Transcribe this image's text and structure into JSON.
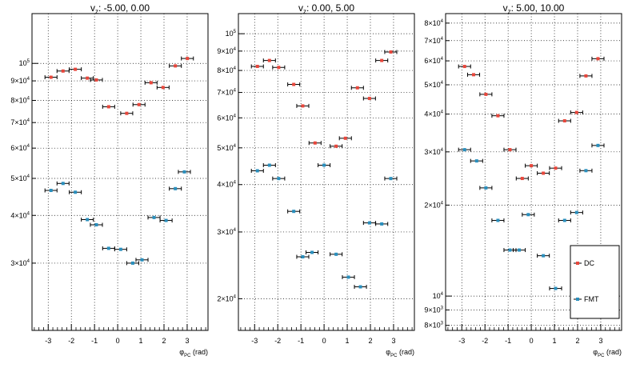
{
  "colors": {
    "DC": "#e8473c",
    "FMT": "#2a8fbd",
    "grid": "#000000",
    "frame": "#000000"
  },
  "chart_data": [
    {
      "type": "scatter",
      "title": "v_z: -5.00, 0.00",
      "title_main": "v",
      "title_sub": "z",
      "title_rest": ": -5.00, 0.00",
      "xlabel": "φ_PC (rad)",
      "xlabel_main": "φ",
      "xlabel_sub": "PC",
      "xlabel_rest": "(rad)",
      "xlim": [
        -3.7,
        3.9
      ],
      "ylim": [
        20000,
        135000
      ],
      "yscale": "log",
      "xticks": [
        -3,
        -2,
        -1,
        0,
        1,
        2,
        3
      ],
      "ytick_labels": [
        {
          "value": 30000,
          "mant": "3×10",
          "exp": "4"
        },
        {
          "value": 40000,
          "mant": "4×10",
          "exp": "4"
        },
        {
          "value": 50000,
          "mant": "5×10",
          "exp": "4"
        },
        {
          "value": 60000,
          "mant": "6×10",
          "exp": "4"
        },
        {
          "value": 70000,
          "mant": "7×10",
          "exp": "4"
        },
        {
          "value": 80000,
          "mant": "8×10",
          "exp": "4"
        },
        {
          "value": 90000,
          "mant": "9×10",
          "exp": "4"
        },
        {
          "value": 100000,
          "mant": "10",
          "exp": "5"
        }
      ],
      "grid": true,
      "bin_halfwidth": 0.26,
      "series": [
        {
          "name": "DC",
          "x": [
            -2.88,
            -2.36,
            -1.83,
            -1.31,
            -0.92,
            -0.39,
            0.39,
            0.92,
            1.44,
            1.96,
            2.49,
            3.01
          ],
          "y": [
            92000,
            95500,
            96500,
            91500,
            90500,
            77000,
            74000,
            78000,
            89000,
            86500,
            98500,
            103000
          ]
        },
        {
          "name": "FMT",
          "x": [
            -2.88,
            -2.36,
            -1.83,
            -1.31,
            -0.92,
            -0.39,
            0.13,
            0.65,
            1.05,
            1.57,
            2.09,
            2.49,
            2.88
          ],
          "y": [
            46500,
            48500,
            46000,
            39000,
            37800,
            32800,
            32600,
            30000,
            30600,
            39500,
            38800,
            47000,
            52000
          ]
        }
      ]
    },
    {
      "type": "scatter",
      "title": "v_z: 0.00, 5.00",
      "title_main": "v",
      "title_sub": "z",
      "title_rest": ": 0.00, 5.00",
      "xlabel": "φ_PC (rad)",
      "xlabel_main": "φ",
      "xlabel_sub": "PC",
      "xlabel_rest": "(rad)",
      "xlim": [
        -3.7,
        3.9
      ],
      "ylim": [
        16500,
        113000
      ],
      "yscale": "log",
      "xticks": [
        -3,
        -2,
        -1,
        0,
        1,
        2,
        3
      ],
      "ytick_labels": [
        {
          "value": 20000,
          "mant": "2×10",
          "exp": "4"
        },
        {
          "value": 30000,
          "mant": "3×10",
          "exp": "4"
        },
        {
          "value": 40000,
          "mant": "4×10",
          "exp": "4"
        },
        {
          "value": 50000,
          "mant": "5×10",
          "exp": "4"
        },
        {
          "value": 60000,
          "mant": "6×10",
          "exp": "4"
        },
        {
          "value": 70000,
          "mant": "7×10",
          "exp": "4"
        },
        {
          "value": 80000,
          "mant": "8×10",
          "exp": "4"
        },
        {
          "value": 90000,
          "mant": "9×10",
          "exp": "4"
        },
        {
          "value": 100000,
          "mant": "10",
          "exp": "5"
        }
      ],
      "grid": true,
      "bin_halfwidth": 0.26,
      "series": [
        {
          "name": "DC",
          "x": [
            -2.88,
            -2.36,
            -1.96,
            -1.31,
            -0.92,
            -0.39,
            0.52,
            0.92,
            1.44,
            1.96,
            2.49,
            2.88
          ],
          "y": [
            82000,
            85000,
            81500,
            73500,
            64500,
            51500,
            50500,
            53000,
            72000,
            67500,
            85000,
            89500
          ]
        },
        {
          "name": "FMT",
          "x": [
            -2.88,
            -2.36,
            -1.96,
            -1.31,
            -0.92,
            -0.52,
            0.0,
            0.52,
            1.05,
            1.57,
            1.96,
            2.49,
            2.88
          ],
          "y": [
            43500,
            45000,
            41500,
            34000,
            25800,
            26500,
            45000,
            26200,
            22800,
            21500,
            31700,
            31500,
            41500
          ]
        }
      ]
    },
    {
      "type": "scatter",
      "title": "v_z: 5.00, 10.00",
      "title_main": "v",
      "title_sub": "z",
      "title_rest": ": 5.00, 10.00",
      "xlabel": "φ_PC (rad)",
      "xlabel_main": "φ",
      "xlabel_sub": "PC",
      "xlabel_rest": "(rad)",
      "xlim": [
        -3.7,
        3.9
      ],
      "ylim": [
        7700,
        86000
      ],
      "yscale": "log",
      "xticks": [
        -3,
        -2,
        -1,
        0,
        1,
        2,
        3
      ],
      "ytick_labels": [
        {
          "value": 8000,
          "mant": "8×10",
          "exp": "3"
        },
        {
          "value": 9000,
          "mant": "9×10",
          "exp": "3"
        },
        {
          "value": 10000,
          "mant": "10",
          "exp": "4"
        },
        {
          "value": 20000,
          "mant": "2×10",
          "exp": "4"
        },
        {
          "value": 30000,
          "mant": "3×10",
          "exp": "4"
        },
        {
          "value": 40000,
          "mant": "4×10",
          "exp": "4"
        },
        {
          "value": 50000,
          "mant": "5×10",
          "exp": "4"
        },
        {
          "value": 60000,
          "mant": "6×10",
          "exp": "4"
        },
        {
          "value": 70000,
          "mant": "7×10",
          "exp": "4"
        },
        {
          "value": 80000,
          "mant": "8×10",
          "exp": "4"
        }
      ],
      "grid": true,
      "bin_halfwidth": 0.26,
      "legend": {
        "placement": "bottom-right",
        "entries": [
          "DC",
          "FMT"
        ]
      },
      "series": [
        {
          "name": "DC",
          "x": [
            -2.88,
            -2.49,
            -1.96,
            -1.44,
            -0.92,
            -0.39,
            0.0,
            0.52,
            1.05,
            1.44,
            1.96,
            2.36,
            2.88
          ],
          "y": [
            57500,
            54000,
            46500,
            39500,
            30500,
            24500,
            27000,
            25500,
            26500,
            38000,
            40500,
            53500,
            61000
          ]
        },
        {
          "name": "FMT",
          "x": [
            -2.88,
            -2.36,
            -1.96,
            -1.44,
            -0.92,
            -0.52,
            -0.13,
            0.52,
            1.05,
            1.44,
            1.96,
            2.36,
            2.88
          ],
          "y": [
            30500,
            28000,
            22800,
            17800,
            14200,
            14200,
            18600,
            13600,
            10600,
            17800,
            18900,
            26000,
            31500
          ]
        }
      ]
    }
  ]
}
